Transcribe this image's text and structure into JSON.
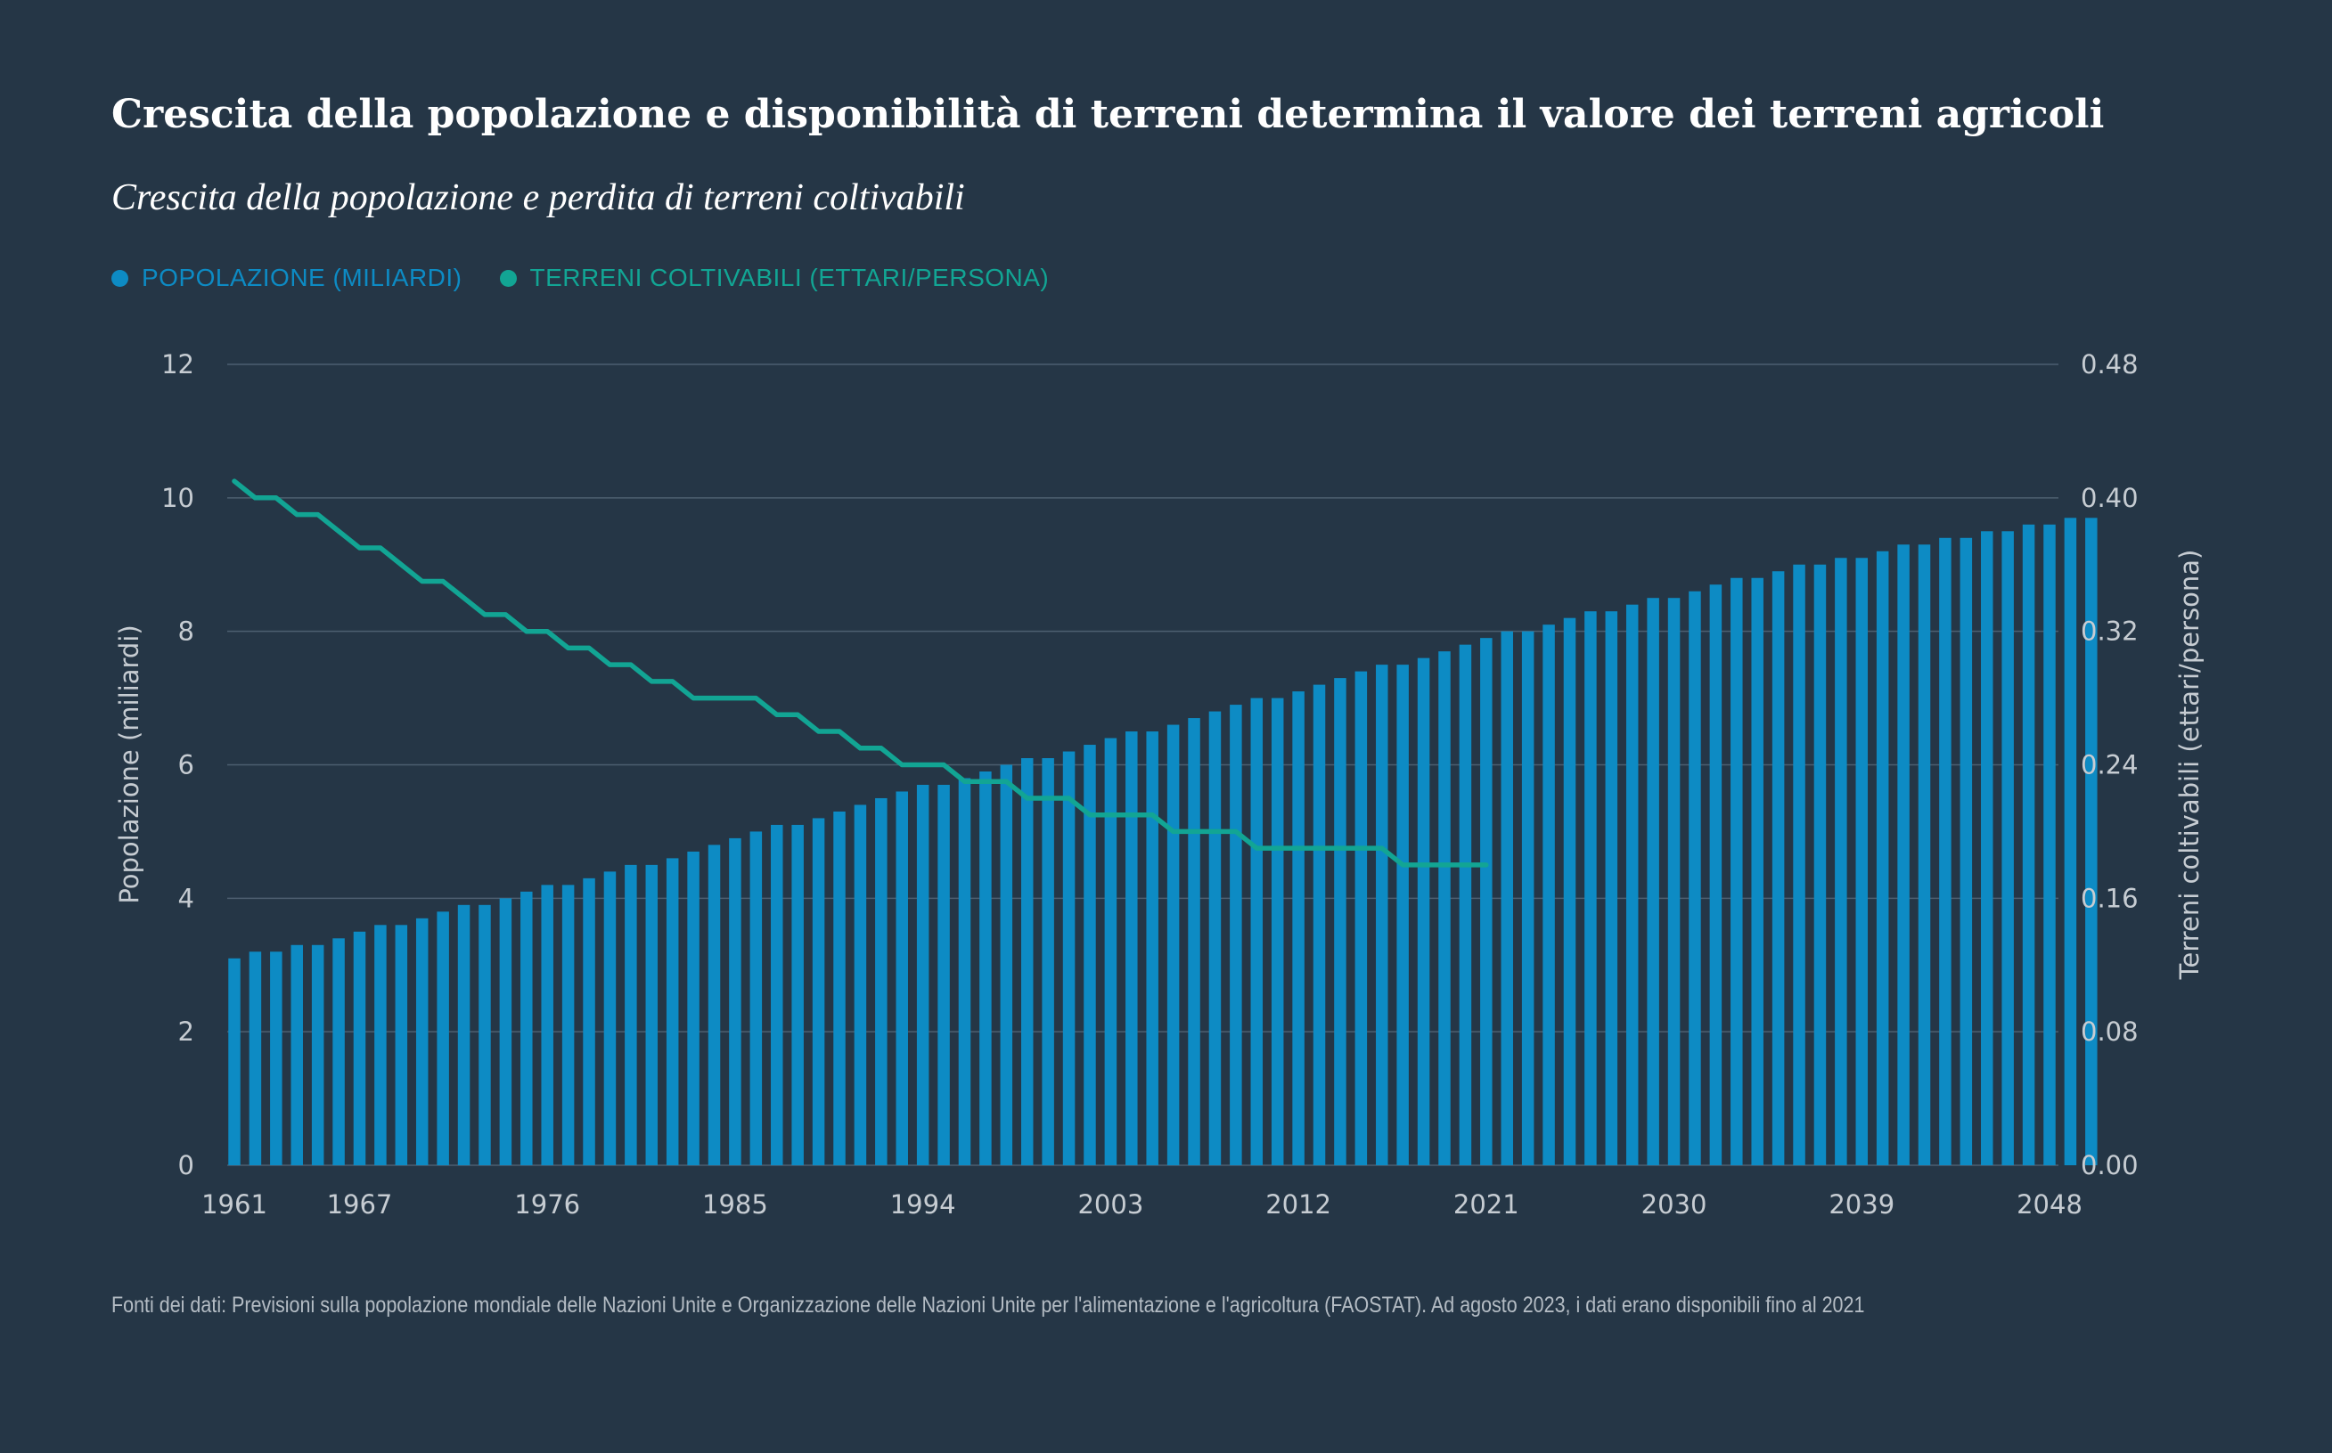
{
  "header": {
    "title": "Crescita della popolazione e disponibilità di terreni determina il valore dei terreni agricoli",
    "subtitle": "Crescita della popolazione e perdita di terreni coltivabili"
  },
  "legend": [
    {
      "label": "POPOLAZIONE (MILIARDI)",
      "color": "#0d8bc4"
    },
    {
      "label": "TERRENI COLTIVABILI (ETTARI/PERSONA)",
      "color": "#12a594"
    }
  ],
  "footer": {
    "source": "Fonti dei dati: Previsioni sulla popolazione mondiale delle Nazioni Unite e Organizzazione delle Nazioni Unite per l'alimentazione e l'agricoltura (FAOSTAT). Ad agosto 2023, i dati erano disponibili fino al 2021"
  },
  "chart_data": {
    "type": "bar+line",
    "title": "Crescita della popolazione e perdita di terreni coltivabili",
    "ylabel_left": "Popolazione (miliardi)",
    "ylabel_right": "Terreni coltivabili (ettari/persona)",
    "ylim_left": [
      0,
      12
    ],
    "ylim_right": [
      0,
      0.48
    ],
    "left_ticks": [
      "0",
      "2",
      "4",
      "6",
      "8",
      "10",
      "12"
    ],
    "right_ticks": [
      "0.00",
      "0.08",
      "0.16",
      "0.24",
      "0.32",
      "0.40",
      "0.48"
    ],
    "x_tick_labels": [
      "1961",
      "1967",
      "1976",
      "1985",
      "1994",
      "2003",
      "2012",
      "2021",
      "2030",
      "2039",
      "2048"
    ],
    "x_start": 1961,
    "x_end": 2048,
    "grid": true,
    "series": [
      {
        "name": "Popolazione (miliardi)",
        "kind": "bar",
        "color": "#0d8bc4",
        "axis": "left",
        "start_year": 1961,
        "values": [
          3.1,
          3.2,
          3.2,
          3.3,
          3.3,
          3.4,
          3.5,
          3.6,
          3.6,
          3.7,
          3.8,
          3.9,
          3.9,
          4.0,
          4.1,
          4.2,
          4.2,
          4.3,
          4.4,
          4.5,
          4.5,
          4.6,
          4.7,
          4.8,
          4.9,
          5.0,
          5.1,
          5.1,
          5.2,
          5.3,
          5.4,
          5.5,
          5.6,
          5.7,
          5.7,
          5.8,
          5.9,
          6.0,
          6.1,
          6.1,
          6.2,
          6.3,
          6.4,
          6.5,
          6.5,
          6.6,
          6.7,
          6.8,
          6.9,
          7.0,
          7.0,
          7.1,
          7.2,
          7.3,
          7.4,
          7.5,
          7.5,
          7.6,
          7.7,
          7.8,
          7.9,
          8.0,
          8.0,
          8.1,
          8.2,
          8.3,
          8.3,
          8.4,
          8.5,
          8.5,
          8.6,
          8.7,
          8.8,
          8.8,
          8.9,
          9.0,
          9.0,
          9.1,
          9.1,
          9.2,
          9.3,
          9.3,
          9.4,
          9.4,
          9.5,
          9.5,
          9.6,
          9.6,
          9.7,
          9.7
        ]
      },
      {
        "name": "Terreni coltivabili (ettari/persona)",
        "kind": "line",
        "color": "#12a594",
        "axis": "right",
        "start_year": 1961,
        "values": [
          0.41,
          0.4,
          0.4,
          0.39,
          0.39,
          0.38,
          0.37,
          0.37,
          0.36,
          0.35,
          0.35,
          0.34,
          0.33,
          0.33,
          0.32,
          0.32,
          0.31,
          0.31,
          0.3,
          0.3,
          0.29,
          0.29,
          0.28,
          0.28,
          0.28,
          0.28,
          0.27,
          0.27,
          0.26,
          0.26,
          0.25,
          0.25,
          0.24,
          0.24,
          0.24,
          0.23,
          0.23,
          0.23,
          0.22,
          0.22,
          0.22,
          0.21,
          0.21,
          0.21,
          0.21,
          0.2,
          0.2,
          0.2,
          0.2,
          0.19,
          0.19,
          0.19,
          0.19,
          0.19,
          0.19,
          0.19,
          0.18,
          0.18,
          0.18,
          0.18,
          0.18
        ]
      }
    ]
  }
}
